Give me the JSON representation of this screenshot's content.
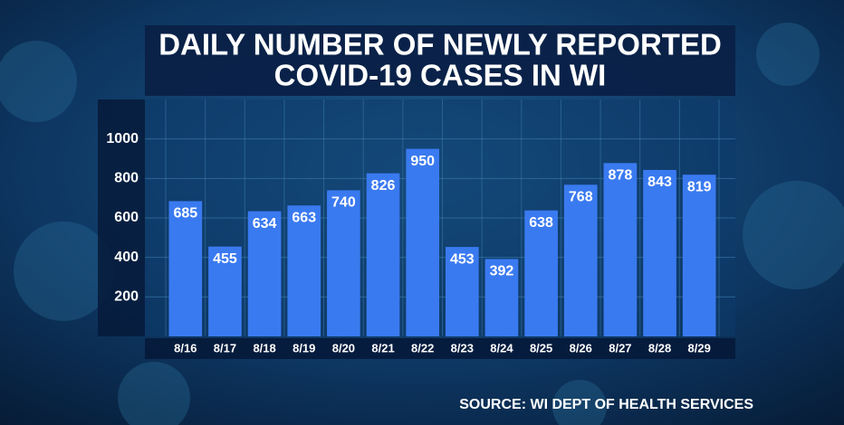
{
  "chart_data": {
    "type": "bar",
    "title": [
      "DAILY NUMBER OF NEWLY REPORTED",
      "COVID-19 CASES IN WI"
    ],
    "categories": [
      "8/16",
      "8/17",
      "8/18",
      "8/19",
      "8/20",
      "8/21",
      "8/22",
      "8/23",
      "8/24",
      "8/25",
      "8/26",
      "8/27",
      "8/28",
      "8/29"
    ],
    "values": [
      685,
      455,
      634,
      663,
      740,
      826,
      950,
      453,
      392,
      638,
      768,
      878,
      843,
      819
    ],
    "color": "#3a7af0",
    "ylim": [
      0,
      1200
    ],
    "yticks": [
      200,
      400,
      600,
      800,
      1000
    ],
    "grid": true,
    "source": "SOURCE: WI DEPT OF HEALTH SERVICES"
  }
}
